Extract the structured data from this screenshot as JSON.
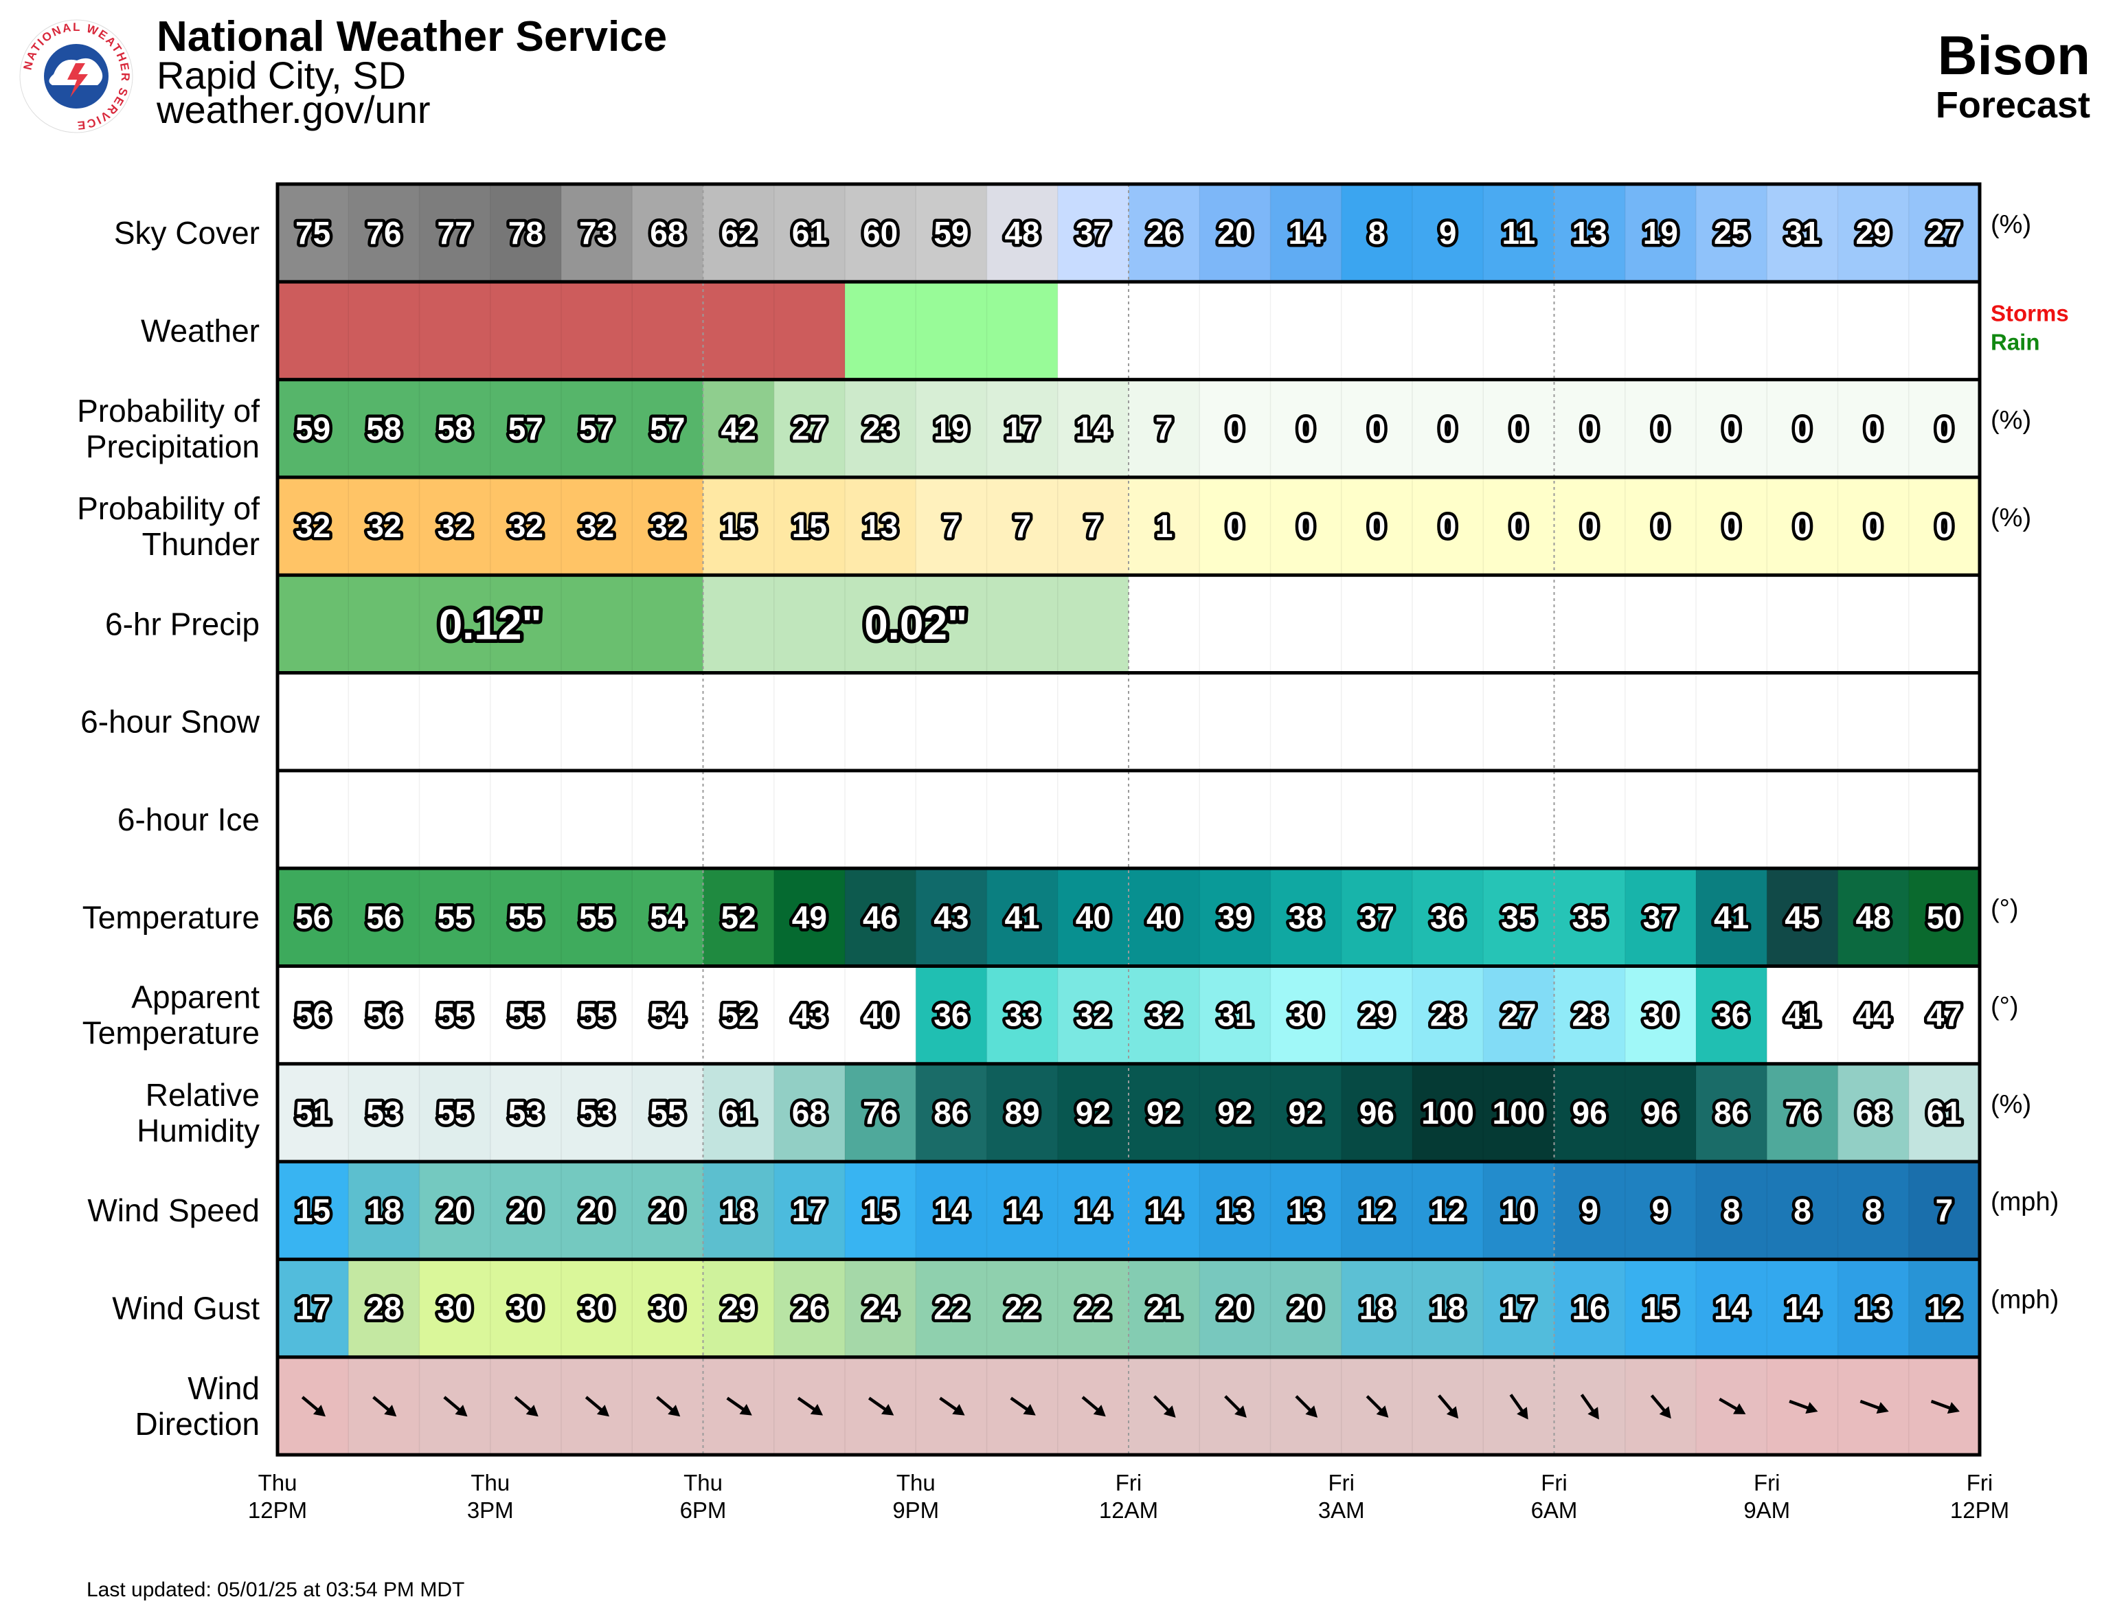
{
  "header": {
    "org": "National Weather Service",
    "office": "Rapid City, SD",
    "site": "weather.gov/unr",
    "location": "Bison",
    "subtitle": "Forecast",
    "seal_text": "NATIONAL WEATHER SERVICE"
  },
  "footer": {
    "updated": "Last updated: 05/01/25 at 03:54 PM MDT"
  },
  "chart_data": {
    "type": "table",
    "hours": 24,
    "x_ticks": [
      {
        "day": "Thu",
        "time": "12PM",
        "hour": 0
      },
      {
        "day": "Thu",
        "time": "3PM",
        "hour": 3
      },
      {
        "day": "Thu",
        "time": "6PM",
        "hour": 6
      },
      {
        "day": "Thu",
        "time": "9PM",
        "hour": 9
      },
      {
        "day": "Fri",
        "time": "12AM",
        "hour": 12
      },
      {
        "day": "Fri",
        "time": "3AM",
        "hour": 15
      },
      {
        "day": "Fri",
        "time": "6AM",
        "hour": 18
      },
      {
        "day": "Fri",
        "time": "9AM",
        "hour": 21
      },
      {
        "day": "Fri",
        "time": "12PM",
        "hour": 24
      }
    ],
    "rows": [
      {
        "key": "sky",
        "label": [
          "Sky Cover"
        ],
        "unit": "(%)",
        "values": [
          75,
          76,
          77,
          78,
          73,
          68,
          62,
          61,
          60,
          59,
          48,
          37,
          26,
          20,
          14,
          8,
          9,
          11,
          13,
          19,
          25,
          31,
          29,
          27
        ],
        "colors": [
          "#8a8a8a",
          "#838383",
          "#7d7d7d",
          "#777777",
          "#959595",
          "#a8a8a8",
          "#bdbdbd",
          "#c0c0c0",
          "#c6c6c6",
          "#cacaca",
          "#dcdde6",
          "#c8dcff",
          "#96c4fb",
          "#7db7f8",
          "#60acf3",
          "#3ba5f0",
          "#40a7f1",
          "#4aaaf2",
          "#59aef4",
          "#73b6f7",
          "#8fc2fa",
          "#a6cdfc",
          "#9ec9fb",
          "#95c4fa"
        ]
      },
      {
        "key": "weather",
        "label": [
          "Weather"
        ],
        "unit": "",
        "segments": [
          {
            "start": 0,
            "end": 8,
            "color": "#cd5c5c",
            "name": "Storms"
          },
          {
            "start": 8,
            "end": 11,
            "color": "#98fb98",
            "name": "Rain"
          }
        ],
        "legend": [
          {
            "text": "Storms",
            "color": "#ee1111"
          },
          {
            "text": "Rain",
            "color": "#118811"
          }
        ]
      },
      {
        "key": "pop",
        "label": [
          "Probability of",
          "Precipitation"
        ],
        "unit": "(%)",
        "values": [
          59,
          58,
          58,
          57,
          57,
          57,
          42,
          27,
          23,
          19,
          17,
          14,
          7,
          0,
          0,
          0,
          0,
          0,
          0,
          0,
          0,
          0,
          0,
          0
        ],
        "colors": [
          "#56b56a",
          "#56b56a",
          "#56b56a",
          "#56b56a",
          "#56b56a",
          "#56b56a",
          "#8fce8e",
          "#bfe6bc",
          "#cdeacb",
          "#d7eed5",
          "#dcf0da",
          "#e4f3e2",
          "#eef8ed",
          "#f5fbf4",
          "#f5fbf4",
          "#f5fbf4",
          "#f5fbf4",
          "#f5fbf4",
          "#f5fbf4",
          "#f5fbf4",
          "#f5fbf4",
          "#f5fbf4",
          "#f5fbf4",
          "#f5fbf4"
        ]
      },
      {
        "key": "thunder",
        "label": [
          "Probability of",
          "Thunder"
        ],
        "unit": "(%)",
        "values": [
          32,
          32,
          32,
          32,
          32,
          32,
          15,
          15,
          13,
          7,
          7,
          7,
          1,
          0,
          0,
          0,
          0,
          0,
          0,
          0,
          0,
          0,
          0,
          0
        ],
        "colors": [
          "#ffc466",
          "#ffc466",
          "#ffc466",
          "#ffc466",
          "#ffc466",
          "#ffc466",
          "#ffe8a3",
          "#ffe8a3",
          "#ffeaaa",
          "#fff1bd",
          "#fff1bd",
          "#fff1bd",
          "#fffac8",
          "#ffffca",
          "#ffffca",
          "#ffffca",
          "#ffffca",
          "#ffffca",
          "#ffffca",
          "#ffffca",
          "#ffffca",
          "#ffffca",
          "#ffffca",
          "#ffffca"
        ]
      },
      {
        "key": "qpf",
        "label": [
          "6-hr Precip"
        ],
        "unit": "",
        "segments": [
          {
            "start": 0,
            "end": 6,
            "color": "#6abf6f",
            "text": "0.12\""
          },
          {
            "start": 6,
            "end": 12,
            "color": "#c0e6bc",
            "text": "0.02\""
          }
        ]
      },
      {
        "key": "snow",
        "label": [
          "6-hour Snow"
        ],
        "unit": "",
        "segments": []
      },
      {
        "key": "ice",
        "label": [
          "6-hour Ice"
        ],
        "unit": "",
        "segments": []
      },
      {
        "key": "temp",
        "label": [
          "Temperature"
        ],
        "unit": "(°)",
        "values": [
          56,
          56,
          55,
          55,
          55,
          54,
          52,
          49,
          46,
          43,
          41,
          40,
          40,
          39,
          38,
          37,
          36,
          35,
          35,
          37,
          41,
          45,
          48,
          50
        ],
        "colors": [
          "#3daa5c",
          "#3daa5c",
          "#3fab5d",
          "#3fab5d",
          "#3fab5d",
          "#41ac5e",
          "#1f8a40",
          "#056a30",
          "#0d5a4e",
          "#106a6a",
          "#0b7f80",
          "#089090",
          "#089090",
          "#0a9a98",
          "#10a8a2",
          "#18b4aa",
          "#1fbcb0",
          "#26c4b6",
          "#26c4b6",
          "#18b4aa",
          "#0b7f80",
          "#114a48",
          "#0c6a40",
          "#0a6a2e"
        ]
      },
      {
        "key": "apparent",
        "label": [
          "Apparent",
          "Temperature"
        ],
        "unit": "(°)",
        "values": [
          56,
          56,
          55,
          55,
          55,
          54,
          52,
          43,
          40,
          36,
          33,
          32,
          32,
          31,
          30,
          29,
          28,
          27,
          28,
          30,
          36,
          41,
          44,
          47
        ],
        "colors": [
          "#ffffff",
          "#ffffff",
          "#ffffff",
          "#ffffff",
          "#ffffff",
          "#ffffff",
          "#ffffff",
          "#ffffff",
          "#ffffff",
          "#20bfb2",
          "#5ae0d6",
          "#7ae8e2",
          "#7ae8e2",
          "#8ef0ee",
          "#a0f8f8",
          "#9af2fa",
          "#90eaf8",
          "#82dcf6",
          "#90eaf8",
          "#a0f8f8",
          "#20bfb2",
          "#ffffff",
          "#ffffff",
          "#ffffff"
        ]
      },
      {
        "key": "rh",
        "label": [
          "Relative",
          "Humidity"
        ],
        "unit": "(%)",
        "values": [
          51,
          53,
          55,
          53,
          53,
          55,
          61,
          68,
          76,
          86,
          89,
          92,
          92,
          92,
          92,
          96,
          100,
          100,
          96,
          96,
          86,
          76,
          68,
          61
        ],
        "colors": [
          "#e8f1f1",
          "#e4f0ef",
          "#e0eeed",
          "#e4f0ef",
          "#e4f0ef",
          "#e0eeed",
          "#c2e4df",
          "#92cfc5",
          "#4fa99b",
          "#1a6c68",
          "#0f5f5b",
          "#085750",
          "#085750",
          "#085750",
          "#085750",
          "#064a44",
          "#053a34",
          "#053a34",
          "#064a44",
          "#064a44",
          "#1a6c68",
          "#4fa99b",
          "#92cfc5",
          "#c2e4df"
        ]
      },
      {
        "key": "wind",
        "label": [
          "Wind Speed"
        ],
        "unit": "(mph)",
        "values": [
          15,
          18,
          20,
          20,
          20,
          20,
          18,
          17,
          15,
          14,
          14,
          14,
          14,
          13,
          13,
          12,
          12,
          10,
          9,
          9,
          8,
          8,
          8,
          7
        ],
        "colors": [
          "#38b4f2",
          "#5cbfcf",
          "#74c9c0",
          "#74c9c0",
          "#74c9c0",
          "#74c9c0",
          "#5cbfcf",
          "#4cbbdd",
          "#38b4f2",
          "#2fa8ec",
          "#2fa8ec",
          "#2fa8ec",
          "#2fa8ec",
          "#2ba0e4",
          "#2ba0e4",
          "#2797d9",
          "#2797d9",
          "#238ccc",
          "#1f81c0",
          "#1f81c0",
          "#1c78b6",
          "#1c78b6",
          "#1c78b6",
          "#1a6fac"
        ]
      },
      {
        "key": "gust",
        "label": [
          "Wind Gust"
        ],
        "unit": "(mph)",
        "values": [
          17,
          28,
          30,
          30,
          30,
          30,
          29,
          26,
          24,
          22,
          22,
          22,
          21,
          20,
          20,
          18,
          18,
          17,
          16,
          15,
          14,
          14,
          13,
          12
        ],
        "colors": [
          "#52bcdc",
          "#c4e8a2",
          "#daf79a",
          "#daf79a",
          "#daf79a",
          "#daf79a",
          "#cff29c",
          "#b8e4a4",
          "#a5d8a8",
          "#8fd0ae",
          "#8fd0ae",
          "#8fd0ae",
          "#84ccb2",
          "#78c8be",
          "#78c8be",
          "#5cc0d4",
          "#5cc0d4",
          "#52bcdc",
          "#44b4e8",
          "#38b0f0",
          "#33a8ee",
          "#33a8ee",
          "#2e9fe6",
          "#2894d6"
        ]
      },
      {
        "key": "winddir",
        "label": [
          "Wind",
          "Direction"
        ],
        "unit": "",
        "arrow_to_deg": [
          130,
          130,
          130,
          130,
          130,
          130,
          125,
          125,
          125,
          125,
          125,
          130,
          135,
          135,
          135,
          135,
          140,
          145,
          145,
          140,
          120,
          110,
          110,
          110
        ],
        "colors": [
          "#e8bcbd",
          "#e4c0c0",
          "#e2c2c2",
          "#e2c2c2",
          "#e2c2c2",
          "#e2c2c2",
          "#e2c2c2",
          "#e2c2c2",
          "#e2c2c2",
          "#e2c2c2",
          "#e2c2c2",
          "#e2c2c2",
          "#e0c4c4",
          "#e0c4c4",
          "#e0c4c4",
          "#e0c4c4",
          "#e0c4c4",
          "#e0c4c4",
          "#e0c4c4",
          "#e2c2c2",
          "#e6bec0",
          "#e8bcbe",
          "#e8bcbe",
          "#e8bcbe"
        ]
      }
    ]
  }
}
